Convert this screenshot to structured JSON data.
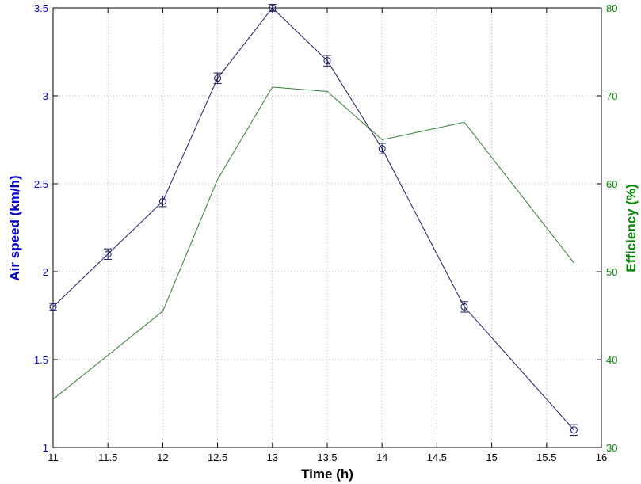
{
  "chart_data": {
    "type": "line",
    "title": "",
    "xlabel": "Time (h)",
    "ylabel_left": "Air speed (km/h)",
    "ylabel_right": "Efficiency (%)",
    "xlim": [
      11,
      16
    ],
    "ylim_left": [
      1,
      3.5
    ],
    "ylim_right": [
      30,
      80
    ],
    "x_ticks": [
      "11",
      "11.5",
      "12",
      "12.5",
      "13",
      "13.5",
      "14",
      "14.5",
      "15",
      "15.5",
      "16"
    ],
    "y_left_ticks": [
      "1",
      "1.5",
      "2",
      "2.5",
      "3",
      "3.5"
    ],
    "y_right_ticks": [
      "30",
      "40",
      "50",
      "60",
      "70",
      "80"
    ],
    "grid": true,
    "colors": {
      "left_axis": "#0000cc",
      "right_axis": "#008800",
      "series_air": "#1a1a66",
      "series_eff": "#2e7d2e"
    },
    "series": [
      {
        "axis": "left",
        "marker": "circle",
        "error_bars": true,
        "x": [
          11,
          11.5,
          12,
          12.5,
          13,
          13.5,
          14,
          14.75,
          15.75
        ],
        "values": [
          1.8,
          2.1,
          2.4,
          3.1,
          3.5,
          3.2,
          2.7,
          1.8,
          1.1
        ],
        "errors": [
          0.02,
          0.03,
          0.03,
          0.03,
          0.02,
          0.03,
          0.03,
          0.03,
          0.03
        ]
      },
      {
        "axis": "right",
        "marker": "none",
        "x": [
          11,
          12,
          12.5,
          13,
          13.5,
          14,
          14.75,
          15.75
        ],
        "values": [
          35.5,
          45.5,
          60.5,
          71,
          70.5,
          65,
          67,
          51
        ]
      }
    ]
  }
}
